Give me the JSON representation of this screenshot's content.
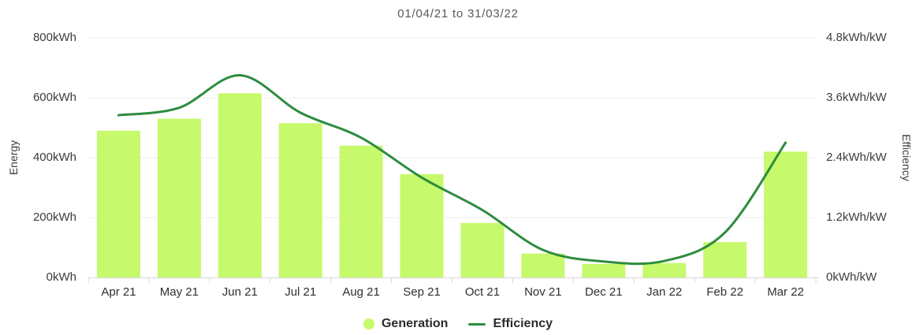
{
  "chart_data": {
    "type": "bar+line combo",
    "title": "01/04/21 to 31/03/22",
    "categories": [
      "Apr 21",
      "May 21",
      "Jun 21",
      "Jul 21",
      "Aug 21",
      "Sep 21",
      "Oct 21",
      "Nov 21",
      "Dec 21",
      "Jan 22",
      "Feb 22",
      "Mar 22"
    ],
    "series": [
      {
        "name": "Generation",
        "type": "bar",
        "unit": "kWh",
        "color": "#c6f96c",
        "axis": "left",
        "values": [
          490,
          530,
          615,
          515,
          440,
          345,
          182,
          80,
          45,
          48,
          118,
          420
        ]
      },
      {
        "name": "Efficiency",
        "type": "line",
        "unit": "kWh/kW",
        "color": "#2e8c3e",
        "axis": "right",
        "values": [
          3.25,
          3.4,
          4.05,
          3.3,
          2.8,
          2.0,
          1.35,
          0.55,
          0.32,
          0.33,
          0.9,
          2.7
        ]
      }
    ],
    "y_left": {
      "label": "Energy",
      "min": 0,
      "max": 800,
      "tick_labels": [
        "0kWh",
        "200kWh",
        "400kWh",
        "600kWh",
        "800kWh"
      ]
    },
    "y_right": {
      "label": "Efficiency",
      "min": 0,
      "max": 4.8,
      "tick_labels": [
        "0kWh/kW",
        "1.2kWh/kW",
        "2.4kWh/kW",
        "3.6kWh/kW",
        "4.8kWh/kW"
      ]
    },
    "grid": true,
    "legend_position": "bottom",
    "colors": {
      "gridline": "#ededed",
      "axis_line": "#d8d8d8",
      "title_text": "#58585a",
      "tick_text": "#3d3d3d"
    }
  }
}
